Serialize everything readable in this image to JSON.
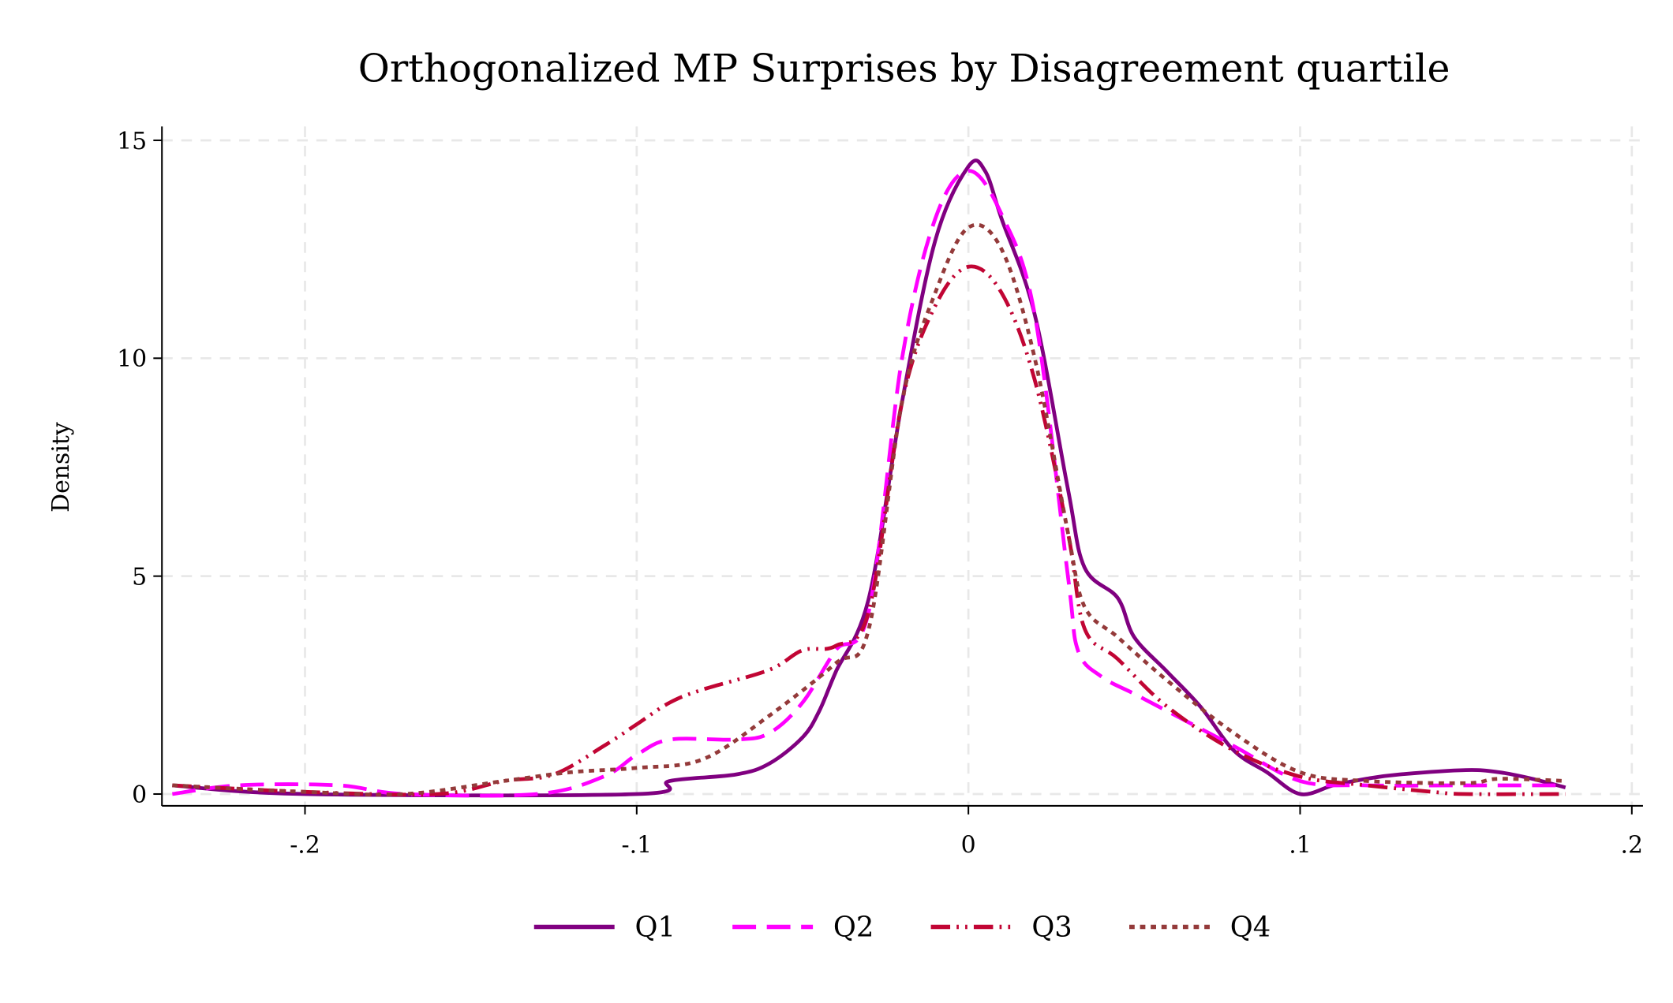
{
  "chart_data": {
    "type": "line",
    "title": "Orthogonalized MP Surprises by Disagreement quartile",
    "xlabel": "",
    "ylabel": "Density",
    "xlim": [
      -0.243,
      0.203
    ],
    "ylim": [
      -0.25,
      15.2
    ],
    "xticks": [
      -0.2,
      -0.1,
      0,
      0.1,
      0.2
    ],
    "xtick_labels": [
      "-.2",
      "-.1",
      "0",
      ".1",
      ".2"
    ],
    "yticks": [
      0,
      5,
      10,
      15
    ],
    "ytick_labels": [
      "0",
      "5",
      "10",
      "15"
    ],
    "grid": true,
    "legend_position": "bottom",
    "series": [
      {
        "name": "Q1",
        "color": "#800080",
        "dash": "solid",
        "x": [
          -0.24,
          -0.2,
          -0.1,
          -0.09,
          -0.07,
          -0.06,
          -0.05,
          -0.045,
          -0.04,
          -0.03,
          -0.02,
          -0.01,
          0,
          0.005,
          0.01,
          0.02,
          0.03,
          0.035,
          0.045,
          0.05,
          0.06,
          0.07,
          0.08,
          0.09,
          0.1,
          0.11,
          0.12,
          0.13,
          0.15,
          0.16,
          0.17,
          0.18
        ],
        "y": [
          0.2,
          0,
          0,
          0.3,
          0.45,
          0.7,
          1.3,
          1.9,
          2.8,
          4.5,
          9,
          12.7,
          14.4,
          14.3,
          13.2,
          11,
          7,
          5.2,
          4.5,
          3.6,
          2.8,
          2,
          1,
          0.5,
          0,
          0.2,
          0.35,
          0.45,
          0.55,
          0.5,
          0.35,
          0.15
        ]
      },
      {
        "name": "Q2",
        "color": "#ff00ff",
        "dash": "dash",
        "x": [
          -0.24,
          -0.22,
          -0.19,
          -0.17,
          -0.13,
          -0.11,
          -0.1,
          -0.09,
          -0.07,
          -0.06,
          -0.05,
          -0.04,
          -0.03,
          -0.02,
          -0.01,
          0,
          0.01,
          0.02,
          0.03,
          0.033,
          0.04,
          0.05,
          0.06,
          0.08,
          0.1,
          0.12,
          0.15,
          0.18
        ],
        "y": [
          0,
          0.2,
          0.2,
          0,
          0,
          0.4,
          0.9,
          1.25,
          1.25,
          1.4,
          2.1,
          3.3,
          4.2,
          10,
          13.2,
          14.3,
          13.3,
          11,
          5,
          3.3,
          2.7,
          2.3,
          1.9,
          1.1,
          0.3,
          0.2,
          0.2,
          0.2
        ]
      },
      {
        "name": "Q3",
        "color": "#c10534",
        "dash": "dashdot",
        "x": [
          -0.24,
          -0.2,
          -0.16,
          -0.14,
          -0.125,
          -0.11,
          -0.1,
          -0.09,
          -0.08,
          -0.06,
          -0.05,
          -0.04,
          -0.03,
          -0.02,
          -0.01,
          0,
          0.01,
          0.02,
          0.03,
          0.035,
          0.045,
          0.06,
          0.08,
          0.1,
          0.12,
          0.14,
          0.15,
          0.18
        ],
        "y": [
          0.2,
          0.05,
          0,
          0.3,
          0.45,
          1.1,
          1.6,
          2.1,
          2.4,
          2.85,
          3.3,
          3.4,
          4.2,
          9,
          11.2,
          12.1,
          11.5,
          9.5,
          6,
          3.8,
          3.1,
          2,
          1,
          0.4,
          0.2,
          0.05,
          0,
          0
        ]
      },
      {
        "name": "Q4",
        "color": "#943a3a",
        "dash": "dot",
        "x": [
          -0.24,
          -0.2,
          -0.17,
          -0.14,
          -0.12,
          -0.1,
          -0.08,
          -0.06,
          -0.04,
          -0.03,
          -0.02,
          -0.01,
          0,
          0.01,
          0.02,
          0.03,
          0.035,
          0.045,
          0.06,
          0.08,
          0.1,
          0.12,
          0.15,
          0.16,
          0.18
        ],
        "y": [
          0.2,
          0.05,
          0,
          0.3,
          0.5,
          0.6,
          0.8,
          1.8,
          3,
          3.8,
          9,
          11.5,
          13,
          12.5,
          10,
          6,
          4.3,
          3.6,
          2.6,
          1.4,
          0.5,
          0.3,
          0.25,
          0.35,
          0.3
        ]
      }
    ]
  }
}
